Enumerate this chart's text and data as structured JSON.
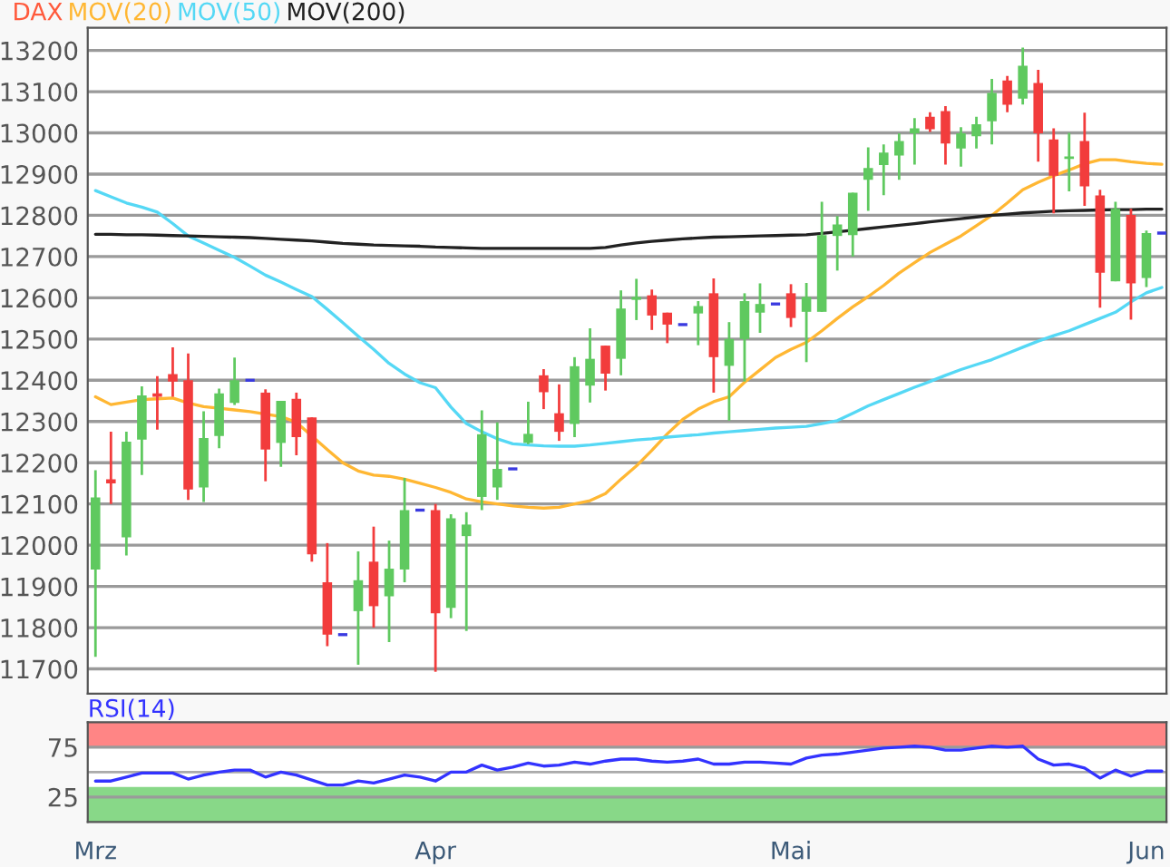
{
  "chart_data": [
    {
      "type": "candlestick",
      "categories": [
        null,
        null,
        null,
        null,
        null,
        null,
        null,
        null,
        null,
        null,
        null,
        null,
        null,
        null,
        null,
        null,
        null,
        null,
        null,
        null,
        null,
        null,
        null,
        null,
        null,
        null,
        null,
        null,
        null,
        null,
        null,
        null,
        null,
        null,
        null,
        null,
        null,
        null,
        null,
        null,
        null,
        null,
        null,
        null,
        null,
        null,
        null,
        null,
        null,
        null,
        null,
        null,
        null,
        null,
        null,
        null,
        null,
        null,
        null,
        null,
        null,
        null,
        null,
        null,
        null,
        null,
        null,
        null,
        null,
        null
      ],
      "series": [
        {
          "type": "candlestick",
          "name": "DAX",
          "color": "#ff5a3c",
          "ohlc": [
            [
              11941,
              12182,
              11729,
              12116
            ],
            [
              12160,
              12275,
              12100,
              12150
            ],
            [
              12019,
              12275,
              11975,
              12251
            ],
            [
              12256,
              12385,
              12170,
              12363
            ],
            [
              12368,
              12410,
              12280,
              12360
            ],
            [
              12415,
              12480,
              12360,
              12397
            ],
            [
              12400,
              12465,
              12110,
              12135
            ],
            [
              12140,
              12325,
              12105,
              12260
            ],
            [
              12265,
              12380,
              12235,
              12368
            ],
            [
              12345,
              12455,
              12340,
              12400
            ],
            [
              12400,
              12400,
              12400,
              12400
            ],
            [
              12370,
              12378,
              12155,
              12232
            ],
            [
              12248,
              12350,
              12190,
              12350
            ],
            [
              12355,
              12370,
              12218,
              12262
            ],
            [
              12310,
              12310,
              11960,
              11978
            ],
            [
              11910,
              12005,
              11755,
              11783
            ],
            [
              11783,
              11783,
              11783,
              11783
            ],
            [
              11840,
              11985,
              11710,
              11915
            ],
            [
              11960,
              12045,
              11800,
              11852
            ],
            [
              11876,
              12011,
              11765,
              11943
            ],
            [
              11941,
              12163,
              11910,
              12085
            ],
            [
              12085,
              12085,
              12085,
              12085
            ],
            [
              12085,
              12100,
              11693,
              11835
            ],
            [
              11848,
              12075,
              11823,
              12065
            ],
            [
              12022,
              12080,
              11792,
              12050
            ],
            [
              12117,
              12327,
              12085,
              12269
            ],
            [
              12140,
              12298,
              12110,
              12185
            ],
            [
              12185,
              12185,
              12185,
              12185
            ],
            [
              12248,
              12348,
              12245,
              12270
            ],
            [
              12412,
              12427,
              12330,
              12371
            ],
            [
              12320,
              12390,
              12253,
              12275
            ],
            [
              12294,
              12456,
              12262,
              12434
            ],
            [
              12387,
              12526,
              12346,
              12452
            ],
            [
              12484,
              12484,
              12375,
              12416
            ],
            [
              12452,
              12618,
              12412,
              12574
            ],
            [
              12595,
              12646,
              12546,
              12602
            ],
            [
              12606,
              12620,
              12522,
              12557
            ],
            [
              12564,
              12564,
              12490,
              12535
            ],
            [
              12535,
              12535,
              12535,
              12535
            ],
            [
              12562,
              12592,
              12485,
              12580
            ],
            [
              12611,
              12647,
              12370,
              12456
            ],
            [
              12435,
              12541,
              12302,
              12500
            ],
            [
              12500,
              12611,
              12397,
              12592
            ],
            [
              12564,
              12635,
              12515,
              12585
            ],
            [
              12585,
              12585,
              12585,
              12585
            ],
            [
              12611,
              12633,
              12529,
              12551
            ],
            [
              12566,
              12636,
              12444,
              12602
            ],
            [
              12566,
              12833,
              12566,
              12752
            ],
            [
              12750,
              12798,
              12666,
              12778
            ],
            [
              12752,
              12855,
              12700,
              12855
            ],
            [
              12886,
              12965,
              12811,
              12915
            ],
            [
              12922,
              12972,
              12849,
              12952
            ],
            [
              12945,
              12999,
              12886,
              12980
            ],
            [
              12999,
              13036,
              12923,
              13011
            ],
            [
              13039,
              13050,
              13002,
              13009
            ],
            [
              13053,
              13065,
              12923,
              12974
            ],
            [
              12962,
              13014,
              12918,
              12999
            ],
            [
              12992,
              13039,
              12962,
              13021
            ],
            [
              13028,
              13131,
              12972,
              13097
            ],
            [
              13127,
              13138,
              13050,
              13068
            ],
            [
              13083,
              13207,
              13069,
              13163
            ],
            [
              13121,
              13153,
              12930,
              12999
            ],
            [
              12984,
              13011,
              12805,
              12896
            ],
            [
              12937,
              13000,
              12858,
              12943
            ],
            [
              12980,
              13049,
              12823,
              12870
            ],
            [
              12848,
              12862,
              12576,
              12661
            ],
            [
              12640,
              12833,
              12640,
              12816
            ],
            [
              12801,
              12816,
              12547,
              12635
            ],
            [
              12648,
              12763,
              12626,
              12757
            ],
            [
              12757,
              12757,
              12757,
              12757
            ]
          ],
          "colors": [
            "#5fc95f",
            "#f23c3c",
            "#5fc95f",
            "#5fc95f",
            "#f23c3c",
            "#f23c3c",
            "#f23c3c",
            "#5fc95f",
            "#5fc95f",
            "#5fc95f",
            "#3a3ae0",
            "#f23c3c",
            "#5fc95f",
            "#f23c3c",
            "#f23c3c",
            "#f23c3c",
            "#3a3ae0",
            "#5fc95f",
            "#f23c3c",
            "#5fc95f",
            "#5fc95f",
            "#3a3ae0",
            "#f23c3c",
            "#5fc95f",
            "#5fc95f",
            "#5fc95f",
            "#5fc95f",
            "#3a3ae0",
            "#5fc95f",
            "#f23c3c",
            "#f23c3c",
            "#5fc95f",
            "#5fc95f",
            "#f23c3c",
            "#5fc95f",
            "#5fc95f",
            "#f23c3c",
            "#f23c3c",
            "#3a3ae0",
            "#5fc95f",
            "#f23c3c",
            "#5fc95f",
            "#5fc95f",
            "#5fc95f",
            "#3a3ae0",
            "#f23c3c",
            "#5fc95f",
            "#5fc95f",
            "#5fc95f",
            "#5fc95f",
            "#5fc95f",
            "#5fc95f",
            "#5fc95f",
            "#5fc95f",
            "#f23c3c",
            "#f23c3c",
            "#5fc95f",
            "#5fc95f",
            "#5fc95f",
            "#f23c3c",
            "#5fc95f",
            "#f23c3c",
            "#f23c3c",
            "#5fc95f",
            "#f23c3c",
            "#f23c3c",
            "#5fc95f",
            "#f23c3c",
            "#5fc95f",
            "#3a3ae0"
          ]
        },
        {
          "type": "line",
          "name": "MOV(20)",
          "color": "#ffb733",
          "values": [
            12360,
            12341,
            12347,
            12353,
            12355,
            12357,
            12345,
            12336,
            12332,
            12328,
            12324,
            12318,
            12312,
            12298,
            12265,
            12232,
            12200,
            12180,
            12170,
            12167,
            12160,
            12150,
            12140,
            12128,
            12112,
            12105,
            12100,
            12095,
            12092,
            12090,
            12092,
            12100,
            12108,
            12125,
            12160,
            12192,
            12230,
            12270,
            12305,
            12330,
            12348,
            12360,
            12395,
            12425,
            12455,
            12475,
            12492,
            12520,
            12550,
            12578,
            12603,
            12630,
            12660,
            12685,
            12710,
            12730,
            12750,
            12775,
            12800,
            12830,
            12862,
            12880,
            12896,
            12910,
            12925,
            12935,
            12935,
            12930,
            12926,
            12924
          ]
        },
        {
          "type": "line",
          "name": "MOV(50)",
          "color": "#55d8f5",
          "values": [
            12860,
            12845,
            12830,
            12820,
            12808,
            12780,
            12750,
            12733,
            12715,
            12698,
            12677,
            12655,
            12638,
            12620,
            12603,
            12572,
            12540,
            12507,
            12475,
            12441,
            12415,
            12394,
            12382,
            12335,
            12295,
            12275,
            12258,
            12246,
            12243,
            12241,
            12240,
            12240,
            12243,
            12247,
            12251,
            12255,
            12258,
            12262,
            12265,
            12268,
            12272,
            12275,
            12278,
            12281,
            12284,
            12286,
            12288,
            12295,
            12302,
            12320,
            12338,
            12353,
            12368,
            12383,
            12397,
            12412,
            12426,
            12438,
            12450,
            12465,
            12480,
            12495,
            12508,
            12520,
            12535,
            12550,
            12565,
            12590,
            12612,
            12625
          ]
        },
        {
          "type": "line",
          "name": "MOV(200)",
          "color": "#222222",
          "values": [
            12754,
            12754,
            12753,
            12753,
            12752,
            12751,
            12750,
            12749,
            12748,
            12747,
            12746,
            12744,
            12742,
            12740,
            12738,
            12735,
            12732,
            12730,
            12728,
            12727,
            12726,
            12725,
            12723,
            12722,
            12721,
            12720,
            12720,
            12720,
            12720,
            12720,
            12720,
            12720,
            12720,
            12722,
            12728,
            12733,
            12737,
            12740,
            12743,
            12745,
            12747,
            12748,
            12749,
            12750,
            12751,
            12752,
            12753,
            12756,
            12760,
            12764,
            12768,
            12772,
            12776,
            12780,
            12784,
            12788,
            12792,
            12796,
            12800,
            12803,
            12806,
            12808,
            12810,
            12811,
            12812,
            12813,
            12814,
            12814,
            12815,
            12815
          ]
        }
      ],
      "ylim": [
        11640,
        13255
      ],
      "yticks": [
        11700,
        11800,
        11900,
        12000,
        12100,
        12200,
        12300,
        12400,
        12500,
        12600,
        12700,
        12800,
        12900,
        13000,
        13100,
        13200
      ],
      "grid": "y"
    },
    {
      "type": "line",
      "categories": [
        "Mrz",
        null,
        null,
        null,
        null,
        null,
        null,
        null,
        null,
        null,
        null,
        null,
        null,
        null,
        null,
        null,
        null,
        null,
        null,
        null,
        null,
        null,
        "Apr",
        null,
        null,
        null,
        null,
        null,
        null,
        null,
        null,
        null,
        null,
        null,
        null,
        null,
        null,
        null,
        null,
        null,
        null,
        null,
        null,
        null,
        null,
        "Mai",
        null,
        null,
        null,
        null,
        null,
        null,
        null,
        null,
        null,
        null,
        null,
        null,
        null,
        null,
        null,
        null,
        null,
        null,
        null,
        null,
        null,
        null,
        "Jun",
        null
      ],
      "series": [
        {
          "name": "RSI(14)",
          "color": "#3333ff",
          "values": [
            41,
            41,
            45,
            49,
            49,
            49,
            43,
            47,
            50,
            52,
            52,
            45,
            50,
            47,
            42,
            37,
            37,
            41,
            39,
            43,
            47,
            45,
            41,
            50,
            50,
            57,
            52,
            55,
            59,
            56,
            57,
            60,
            58,
            61,
            63,
            63,
            61,
            60,
            61,
            63,
            58,
            58,
            60,
            60,
            59,
            58,
            64,
            67,
            68,
            70,
            72,
            74,
            75,
            76,
            75,
            72,
            72,
            74,
            76,
            75,
            76,
            63,
            57,
            58,
            54,
            44,
            52,
            46,
            51,
            51
          ]
        }
      ],
      "ylim": [
        0,
        100
      ],
      "yticks": [
        25,
        75
      ],
      "bands": [
        {
          "axis": "y",
          "from": 75,
          "to": 100,
          "color": "#ff8585"
        },
        {
          "axis": "y",
          "from": 0,
          "to": 35,
          "color": "#88d888"
        }
      ],
      "ref_lines": [
        {
          "axis": "y",
          "value": 50,
          "color": "#aaaaaa"
        }
      ],
      "grid": "y"
    }
  ]
}
